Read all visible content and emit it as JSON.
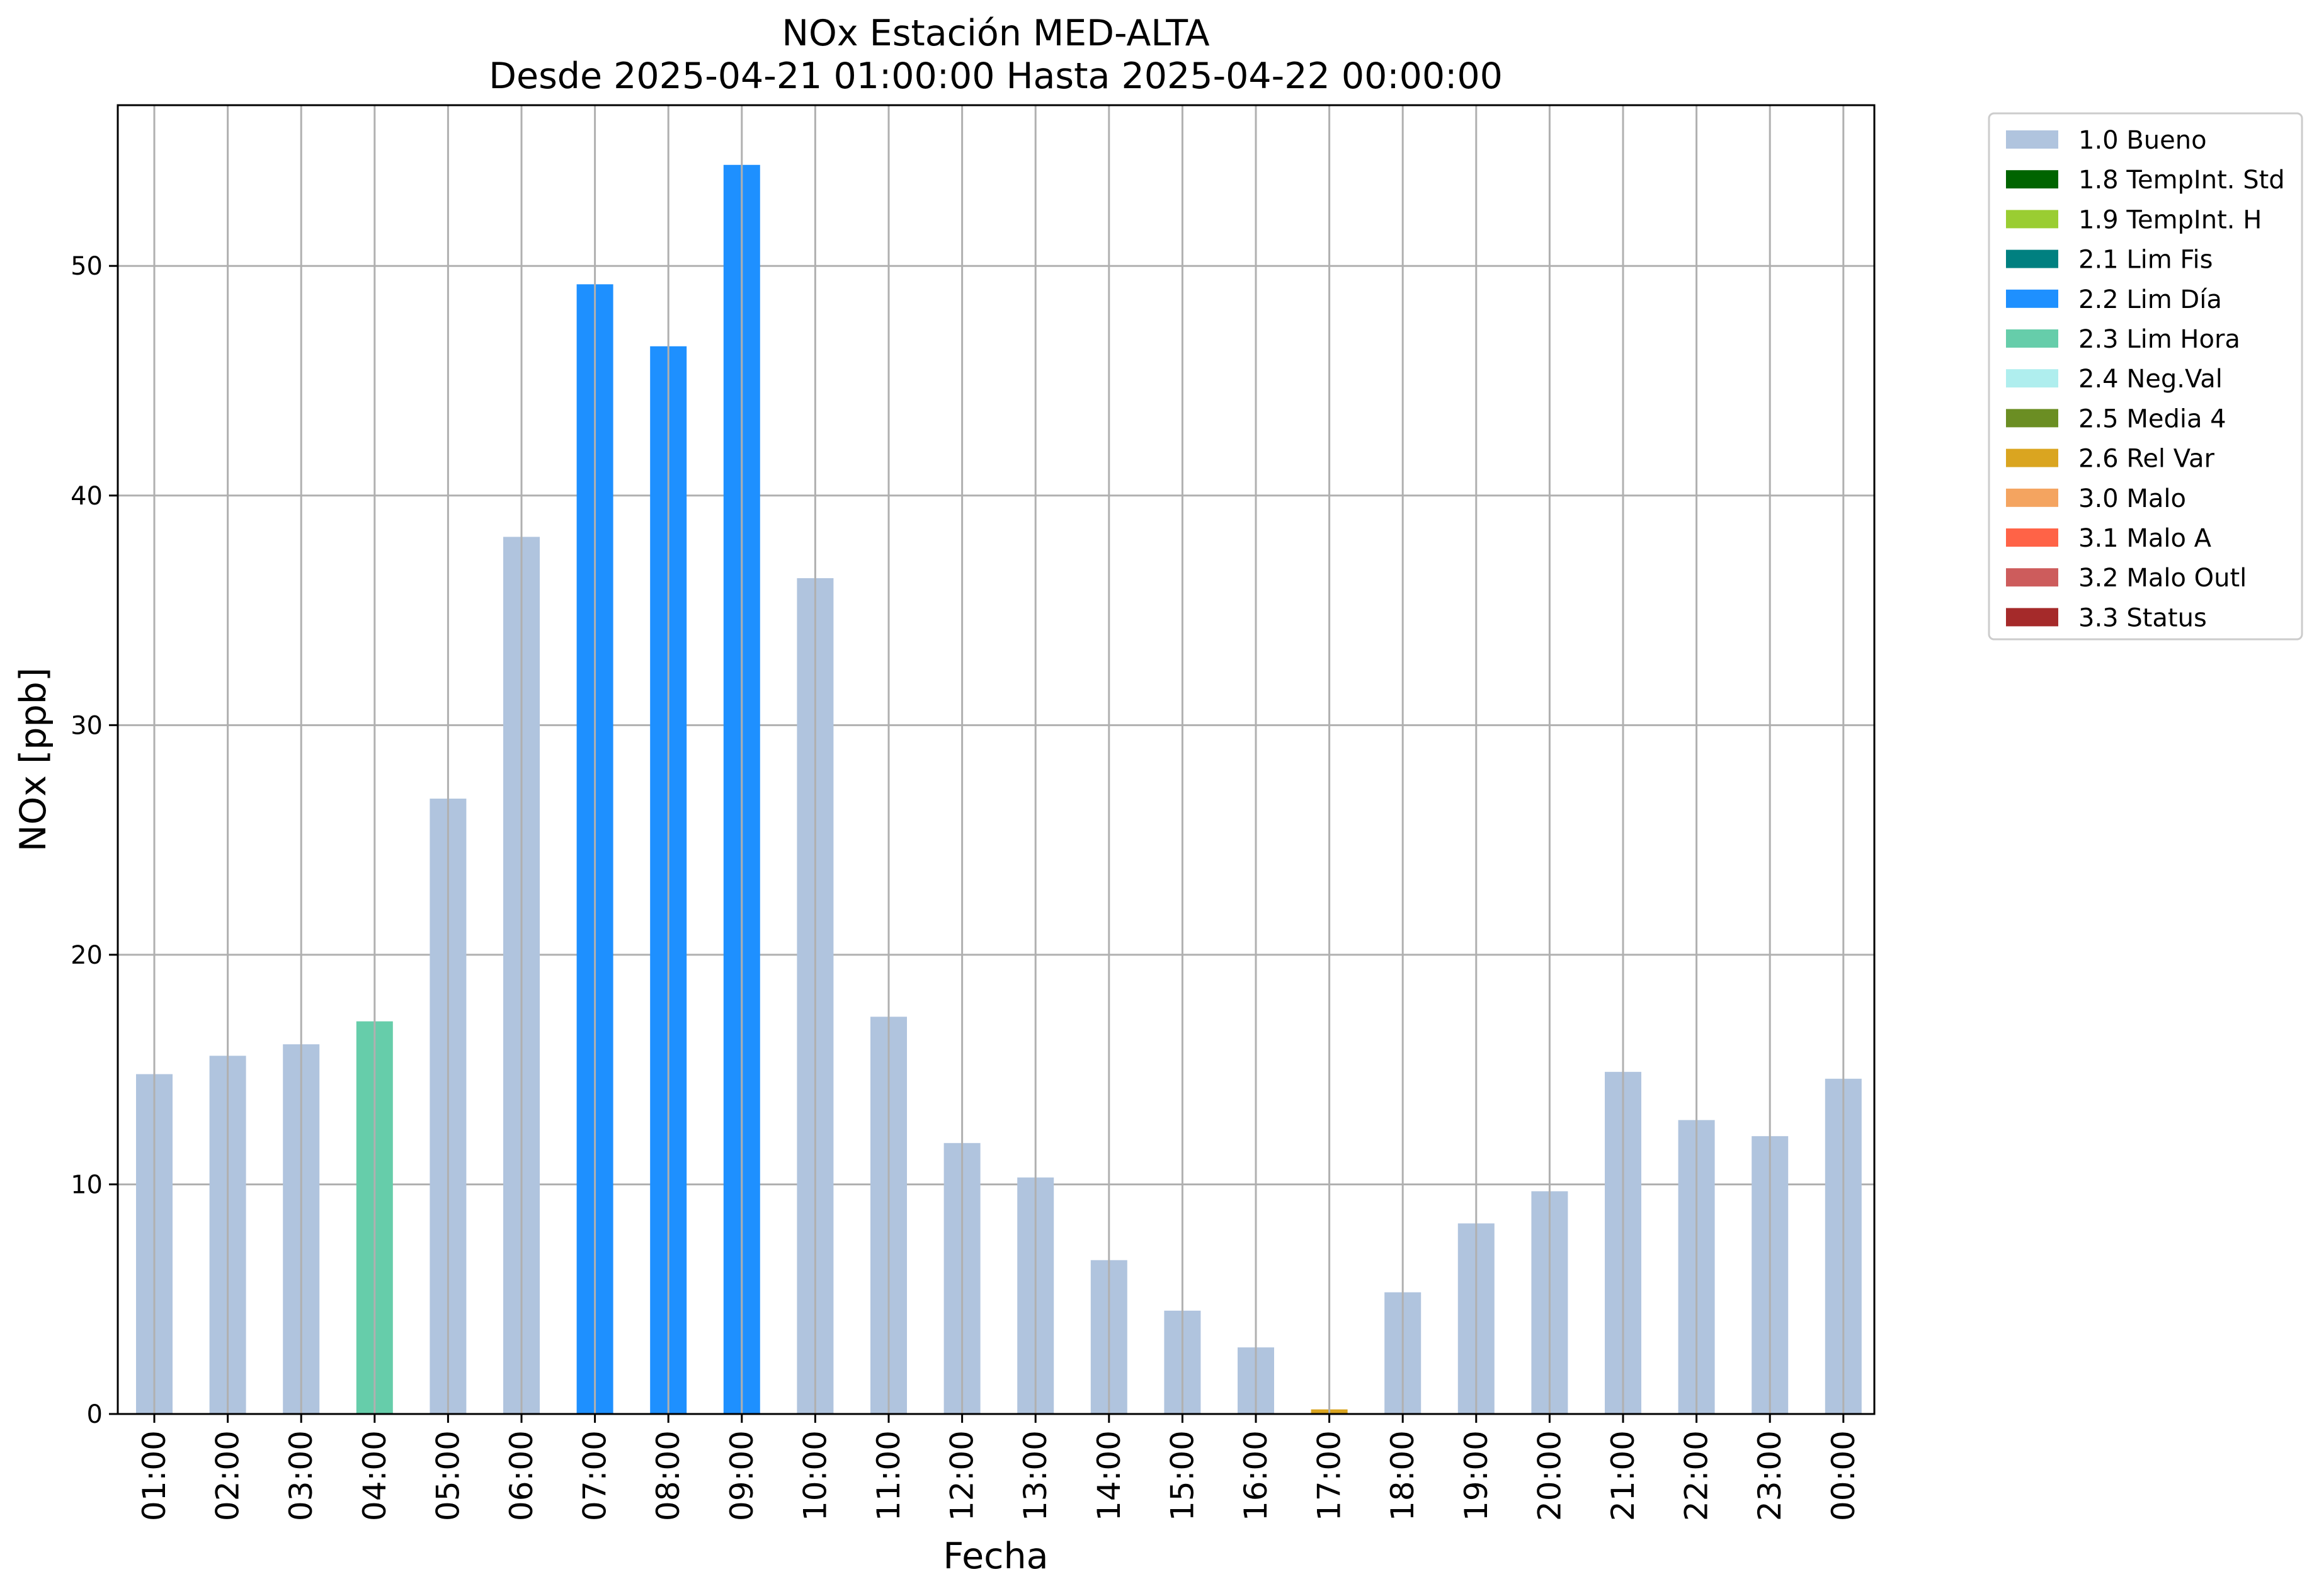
{
  "chart_data": {
    "type": "bar",
    "title": "NOx Estación MED-ALTA",
    "subtitle": "Desde 2025-04-21 01:00:00 Hasta 2025-04-22 00:00:00",
    "xlabel": "Fecha",
    "ylabel": "NOx [ppb]",
    "ylim": [
      0,
      57
    ],
    "yticks": [
      0,
      10,
      20,
      30,
      40,
      50
    ],
    "grid": true,
    "legend_position": "outside-top-right",
    "categories": [
      "01:00",
      "02:00",
      "03:00",
      "04:00",
      "05:00",
      "06:00",
      "07:00",
      "08:00",
      "09:00",
      "10:00",
      "11:00",
      "12:00",
      "13:00",
      "14:00",
      "15:00",
      "16:00",
      "17:00",
      "18:00",
      "19:00",
      "20:00",
      "21:00",
      "22:00",
      "23:00",
      "00:00"
    ],
    "values": [
      14.8,
      15.6,
      16.1,
      17.1,
      26.8,
      38.2,
      49.2,
      46.5,
      54.4,
      36.4,
      17.3,
      11.8,
      10.3,
      6.7,
      4.5,
      2.9,
      0.2,
      5.3,
      8.3,
      9.7,
      14.9,
      12.8,
      12.1,
      14.6
    ],
    "flags": [
      "1.0 Bueno",
      "1.0 Bueno",
      "1.0 Bueno",
      "2.3 Lim Hora",
      "1.0 Bueno",
      "1.0 Bueno",
      "2.2 Lim Día",
      "2.2 Lim Día",
      "2.2 Lim Día",
      "1.0 Bueno",
      "1.0 Bueno",
      "1.0 Bueno",
      "1.0 Bueno",
      "1.0 Bueno",
      "1.0 Bueno",
      "1.0 Bueno",
      "2.6 Rel Var",
      "1.0 Bueno",
      "1.0 Bueno",
      "1.0 Bueno",
      "1.0 Bueno",
      "1.0 Bueno",
      "1.0 Bueno",
      "1.0 Bueno"
    ],
    "legend": [
      {
        "name": "1.0 Bueno",
        "color": "#b0c4de"
      },
      {
        "name": "1.8 TempInt. Std",
        "color": "#006400"
      },
      {
        "name": "1.9 TempInt. H",
        "color": "#9acd32"
      },
      {
        "name": "2.1 Lim Fis",
        "color": "#008080"
      },
      {
        "name": "2.2 Lim Día",
        "color": "#1e90ff"
      },
      {
        "name": "2.3 Lim Hora",
        "color": "#66cdaa"
      },
      {
        "name": "2.4 Neg.Val",
        "color": "#afeeee"
      },
      {
        "name": "2.5 Media 4",
        "color": "#6b8e23"
      },
      {
        "name": "2.6 Rel Var",
        "color": "#daa520"
      },
      {
        "name": "3.0 Malo",
        "color": "#f4a460"
      },
      {
        "name": "3.1 Malo A",
        "color": "#ff6347"
      },
      {
        "name": "3.2 Malo Outl",
        "color": "#cd5c5c"
      },
      {
        "name": "3.3 Status",
        "color": "#a52a2a"
      }
    ]
  }
}
